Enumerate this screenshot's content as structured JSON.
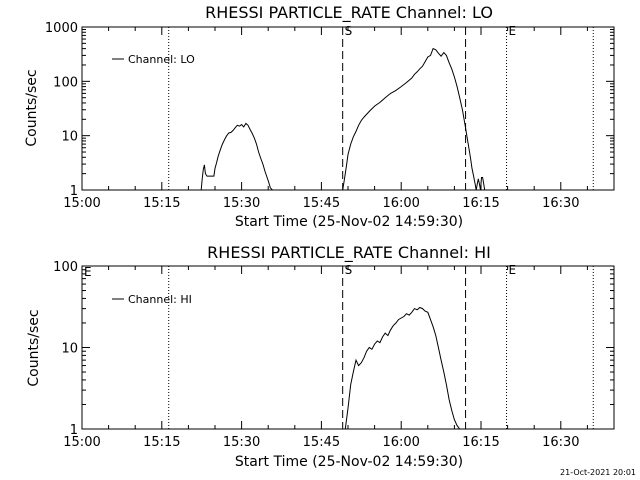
{
  "colors": {
    "background": "#ffffff",
    "foreground": "#000000"
  },
  "footer": {
    "timestamp": "21-Oct-2021 20:01"
  },
  "chart_data": [
    {
      "type": "line",
      "title": "RHESSI PARTICLE_RATE Channel: LO",
      "xlabel": "Start Time (25-Nov-02 14:59:30)",
      "ylabel": "Counts/sec",
      "xscale": "time-minutes",
      "yscale": "log",
      "xlim": [
        0,
        100
      ],
      "ylim": [
        1,
        1000
      ],
      "x_ticks": [
        {
          "value": 0,
          "label": "15:00"
        },
        {
          "value": 15,
          "label": "15:15"
        },
        {
          "value": 30,
          "label": "15:30"
        },
        {
          "value": 45,
          "label": "15:45"
        },
        {
          "value": 60,
          "label": "16:00"
        },
        {
          "value": 75,
          "label": "16:15"
        },
        {
          "value": 90,
          "label": "16:30"
        }
      ],
      "y_ticks": [
        {
          "value": 1,
          "label": "1"
        },
        {
          "value": 10,
          "label": "10"
        },
        {
          "value": 100,
          "label": "100"
        },
        {
          "value": 1000,
          "label": "1000"
        }
      ],
      "legend": {
        "position": "top-left",
        "entries": [
          "Channel: LO"
        ]
      },
      "markers": [
        {
          "x": 16.3,
          "style": "dotted",
          "label": ""
        },
        {
          "x": 49.0,
          "style": "dashed",
          "label": "S"
        },
        {
          "x": 72.1,
          "style": "dashed",
          "label": ""
        },
        {
          "x": 79.8,
          "style": "dotted",
          "label": "E"
        },
        {
          "x": 96.1,
          "style": "dotted",
          "label": ""
        }
      ],
      "series": [
        {
          "name": "Channel: LO",
          "x": [
            22.4,
            22.6,
            22.8,
            23.0,
            23.2,
            23.5,
            24.0,
            24.4,
            24.8,
            25.0,
            25.3,
            25.6,
            26.0,
            26.4,
            26.8,
            27.2,
            27.6,
            28.0,
            28.4,
            28.8,
            29.2,
            29.6,
            30.0,
            30.4,
            30.8,
            31.2,
            31.6,
            32.0,
            32.4,
            32.8,
            33.2,
            33.6,
            34.0,
            34.4,
            34.8,
            35.1,
            35.4,
            35.8,
            49.0,
            49.2,
            49.5,
            49.8,
            50.0,
            50.5,
            51.0,
            51.5,
            52.0,
            52.5,
            53.0,
            54.0,
            55.0,
            56.0,
            57.0,
            58.0,
            59.0,
            60.0,
            61.0,
            62.0,
            62.5,
            63.0,
            63.5,
            64.0,
            64.5,
            65.0,
            65.5,
            66.0,
            66.5,
            67.0,
            67.5,
            68.0,
            68.5,
            69.0,
            69.5,
            70.0,
            70.5,
            71.0,
            71.5,
            72.0,
            72.5,
            73.0,
            73.3,
            73.6,
            73.9,
            74.1,
            74.3,
            74.5,
            74.7,
            74.9,
            75.1,
            75.3,
            75.5,
            75.7
          ],
          "y": [
            1.0,
            1.6,
            2.4,
            2.9,
            2.0,
            1.8,
            1.8,
            1.8,
            1.8,
            2.5,
            3.2,
            4.2,
            5.5,
            7.0,
            8.5,
            10.0,
            11.2,
            11.5,
            12.5,
            14.0,
            15.5,
            15.0,
            16.0,
            14.5,
            16.8,
            15.5,
            13.0,
            11.0,
            9.0,
            7.0,
            5.0,
            3.8,
            3.0,
            2.2,
            1.7,
            1.4,
            1.1,
            1.0,
            1.0,
            1.3,
            2.0,
            3.2,
            4.5,
            7.0,
            9.5,
            12.0,
            15.5,
            19.0,
            22.0,
            28.0,
            35.0,
            41.0,
            50.0,
            60.0,
            68.0,
            80.0,
            95.0,
            115.0,
            135.0,
            150.0,
            170.0,
            190.0,
            230.0,
            280.0,
            300.0,
            400.0,
            380.0,
            330.0,
            290.0,
            340.0,
            300.0,
            220.0,
            170.0,
            120.0,
            80.0,
            50.0,
            30.0,
            16.0,
            8.0,
            4.0,
            2.5,
            1.8,
            1.3,
            1.0,
            1.3,
            1.6,
            1.3,
            1.0,
            1.7,
            1.7,
            1.3,
            1.0
          ]
        }
      ]
    },
    {
      "type": "line",
      "title": "RHESSI PARTICLE_RATE Channel: HI",
      "xlabel": "Start Time (25-Nov-02 14:59:30)",
      "ylabel": "Counts/sec",
      "xscale": "time-minutes",
      "yscale": "log",
      "xlim": [
        0,
        100
      ],
      "ylim": [
        1,
        100
      ],
      "x_ticks": [
        {
          "value": 0,
          "label": "15:00"
        },
        {
          "value": 15,
          "label": "15:15"
        },
        {
          "value": 30,
          "label": "15:30"
        },
        {
          "value": 45,
          "label": "15:45"
        },
        {
          "value": 60,
          "label": "16:00"
        },
        {
          "value": 75,
          "label": "16:15"
        },
        {
          "value": 90,
          "label": "16:30"
        }
      ],
      "y_ticks": [
        {
          "value": 1,
          "label": "1"
        },
        {
          "value": 10,
          "label": "10"
        },
        {
          "value": 100,
          "label": "100"
        }
      ],
      "legend": {
        "position": "top-left",
        "entries": [
          "Channel: HI"
        ]
      },
      "markers": [
        {
          "x": 16.3,
          "style": "dotted",
          "label": ""
        },
        {
          "x": 49.0,
          "style": "dashed",
          "label": "S"
        },
        {
          "x": 72.1,
          "style": "dashed",
          "label": ""
        },
        {
          "x": 79.8,
          "style": "dotted",
          "label": "E"
        },
        {
          "x": 96.1,
          "style": "dotted",
          "label": ""
        }
      ],
      "top_left_marker_label": "E",
      "series": [
        {
          "name": "Channel: HI",
          "x": [
            49.5,
            50.0,
            50.5,
            51.0,
            51.5,
            52.0,
            52.5,
            53.0,
            53.5,
            54.0,
            54.5,
            55.0,
            55.5,
            56.0,
            56.5,
            57.0,
            57.5,
            58.0,
            58.5,
            59.0,
            59.5,
            60.0,
            60.5,
            61.0,
            61.5,
            62.0,
            62.5,
            63.0,
            63.5,
            64.0,
            64.5,
            65.0,
            65.5,
            66.0,
            66.5,
            67.0,
            67.5,
            68.0,
            68.5,
            69.0,
            69.5,
            70.0,
            70.5,
            71.0
          ],
          "y": [
            1.0,
            1.8,
            3.5,
            5.0,
            7.0,
            6.0,
            6.5,
            7.5,
            9.0,
            10.0,
            9.5,
            11.0,
            12.0,
            11.5,
            13.5,
            15.0,
            14.0,
            16.5,
            18.5,
            20.0,
            22.0,
            23.0,
            24.0,
            26.0,
            25.0,
            27.0,
            30.0,
            29.0,
            31.0,
            30.0,
            28.0,
            27.0,
            22.0,
            18.0,
            14.0,
            10.0,
            7.0,
            5.0,
            3.5,
            2.3,
            1.7,
            1.3,
            1.1,
            1.0
          ]
        }
      ]
    }
  ]
}
